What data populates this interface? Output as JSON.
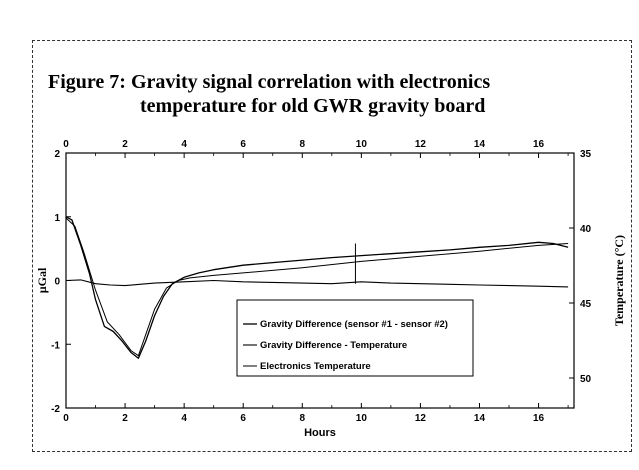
{
  "figure": {
    "title_line1": "Figure 7:  Gravity signal correlation with electronics",
    "title_line2": "temperature for old GWR gravity board"
  },
  "chart_data": {
    "type": "line",
    "xlabel": "Hours",
    "ylabel_left": "µGal",
    "ylabel_right": "Temperature (°C)",
    "xlim": [
      0,
      17.2
    ],
    "x_ticks": [
      0,
      2,
      4,
      6,
      8,
      10,
      12,
      14,
      16
    ],
    "ylim_left": [
      -2,
      2
    ],
    "y_ticks_left": [
      2,
      1,
      0,
      -1,
      -2
    ],
    "ylim_right": [
      35,
      52
    ],
    "y_ticks_right": [
      35,
      40,
      45,
      50
    ],
    "right_axis_inverted": true,
    "grid": false,
    "legend_position": "bottom-center",
    "series": [
      {
        "name": "Gravity Difference (sensor #1 - sensor #2)",
        "axis": "left",
        "x": [
          0,
          0.2,
          0.5,
          0.8,
          1.0,
          1.3,
          1.6,
          1.9,
          2.2,
          2.45,
          2.7,
          3.0,
          3.3,
          3.6,
          4.0,
          4.5,
          5.0,
          6.0,
          7.0,
          8.0,
          9.0,
          10.0,
          11.0,
          12.0,
          13.0,
          14.0,
          15.0,
          16.0,
          16.5,
          17.0
        ],
        "y": [
          1.0,
          0.95,
          0.55,
          0.1,
          -0.3,
          -0.72,
          -0.8,
          -0.95,
          -1.13,
          -1.22,
          -0.95,
          -0.55,
          -0.25,
          -0.05,
          0.05,
          0.12,
          0.17,
          0.24,
          0.28,
          0.32,
          0.36,
          0.39,
          0.42,
          0.45,
          0.48,
          0.52,
          0.55,
          0.6,
          0.58,
          0.52
        ]
      },
      {
        "name": "Gravity Difference - Temperature",
        "axis": "left",
        "x": [
          0,
          0.5,
          1.0,
          1.5,
          2.0,
          2.5,
          3.0,
          4.0,
          5.0,
          6.0,
          7.0,
          8.0,
          9.0,
          10.0,
          11.0,
          12.0,
          13.0,
          14.0,
          15.0,
          16.0,
          17.0
        ],
        "y": [
          0.0,
          0.01,
          -0.05,
          -0.07,
          -0.08,
          -0.06,
          -0.04,
          -0.02,
          0.0,
          -0.02,
          -0.03,
          -0.04,
          -0.05,
          -0.02,
          -0.04,
          -0.05,
          -0.06,
          -0.07,
          -0.08,
          -0.09,
          -0.1
        ]
      },
      {
        "name": "Electronics Temperature",
        "axis": "left",
        "x": [
          0,
          0.3,
          0.6,
          1.0,
          1.4,
          1.8,
          2.2,
          2.45,
          2.7,
          3.0,
          3.4,
          3.8,
          4.2,
          5.0,
          6.0,
          8.0,
          10.0,
          12.0,
          14.0,
          16.0,
          17.0
        ],
        "y": [
          0.98,
          0.85,
          0.45,
          -0.15,
          -0.65,
          -0.85,
          -1.1,
          -1.18,
          -0.85,
          -0.45,
          -0.12,
          0.0,
          0.04,
          0.08,
          0.12,
          0.2,
          0.3,
          0.38,
          0.46,
          0.55,
          0.58
        ]
      }
    ],
    "annotations": []
  }
}
